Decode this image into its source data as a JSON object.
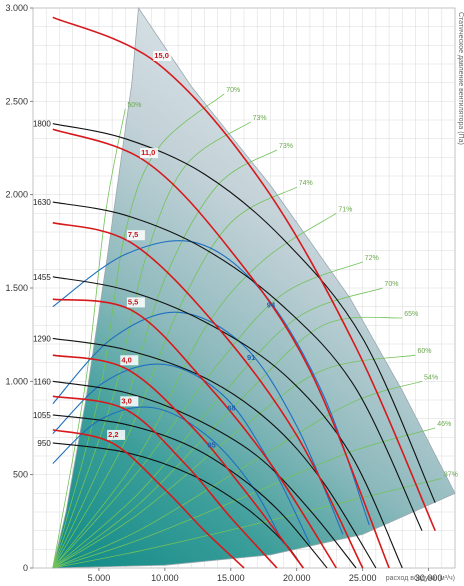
{
  "chart_data": {
    "type": "line",
    "xlabel": "расход воздуха (м³/ч)",
    "ylabel": "Статическое давление вентилятора (Па)",
    "xlim": [
      0,
      32000
    ],
    "ylim": [
      0,
      3000
    ],
    "x_ticks": [
      {
        "value": 5000,
        "label": "5.000"
      },
      {
        "value": 10000,
        "label": "10.000"
      },
      {
        "value": 15000,
        "label": "15.000"
      },
      {
        "value": 20000,
        "label": "20.000"
      },
      {
        "value": 25000,
        "label": "25.000"
      },
      {
        "value": 30000,
        "label": "30.000"
      }
    ],
    "y_ticks": [
      {
        "value": 0,
        "label": "0"
      },
      {
        "value": 500,
        "label": "500"
      },
      {
        "value": 1000,
        "label": "1.000"
      },
      {
        "value": 1500,
        "label": "1.500"
      },
      {
        "value": 2000,
        "label": "2.000"
      },
      {
        "value": 2500,
        "label": "2.500"
      },
      {
        "value": 3000,
        "label": "3.000"
      }
    ],
    "grid": true,
    "operating_region": {
      "left_boundary": [
        [
          1500,
          0
        ],
        [
          2500,
          300
        ],
        [
          4000,
          900
        ],
        [
          5700,
          1700
        ],
        [
          7500,
          2600
        ],
        [
          8000,
          3000
        ]
      ],
      "right_boundary": [
        [
          8000,
          3000
        ],
        [
          12000,
          2580
        ],
        [
          18000,
          2050
        ],
        [
          24000,
          1450
        ],
        [
          28000,
          950
        ],
        [
          32000,
          400
        ]
      ],
      "bottom_boundary": [
        [
          32000,
          400
        ],
        [
          25000,
          180
        ],
        [
          18000,
          70
        ],
        [
          10000,
          15
        ],
        [
          1500,
          0
        ]
      ]
    },
    "speed_curves": [
      {
        "label": "950",
        "points": [
          [
            1500,
            670
          ],
          [
            7000,
            620
          ],
          [
            12000,
            500
          ],
          [
            16000,
            330
          ],
          [
            19000,
            140
          ],
          [
            20500,
            0
          ]
        ]
      },
      {
        "label": "1055",
        "points": [
          [
            1500,
            820
          ],
          [
            7000,
            770
          ],
          [
            12000,
            650
          ],
          [
            16000,
            470
          ],
          [
            19000,
            280
          ],
          [
            22300,
            0
          ]
        ]
      },
      {
        "label": "1160",
        "points": [
          [
            1500,
            1000
          ],
          [
            7000,
            940
          ],
          [
            12000,
            810
          ],
          [
            17000,
            600
          ],
          [
            21000,
            310
          ],
          [
            24500,
            0
          ]
        ]
      },
      {
        "label": "1290",
        "points": [
          [
            1500,
            1230
          ],
          [
            7000,
            1170
          ],
          [
            13000,
            1020
          ],
          [
            18000,
            780
          ],
          [
            22000,
            460
          ],
          [
            26000,
            0
          ]
        ]
      },
      {
        "label": "1455",
        "points": [
          [
            1500,
            1560
          ],
          [
            7000,
            1490
          ],
          [
            13000,
            1320
          ],
          [
            19000,
            1040
          ],
          [
            24000,
            620
          ],
          [
            28000,
            0
          ]
        ]
      },
      {
        "label": "1630",
        "points": [
          [
            1500,
            1960
          ],
          [
            7000,
            1890
          ],
          [
            13000,
            1710
          ],
          [
            19000,
            1400
          ],
          [
            24500,
            960
          ],
          [
            29500,
            200
          ]
        ]
      },
      {
        "label": "1800",
        "points": [
          [
            1500,
            2380
          ],
          [
            7000,
            2300
          ],
          [
            13000,
            2110
          ],
          [
            19000,
            1760
          ],
          [
            25000,
            1230
          ],
          [
            30500,
            350
          ]
        ]
      }
    ],
    "power_curves": [
      {
        "label": "2,2",
        "points": [
          [
            1500,
            740
          ],
          [
            6000,
            670
          ],
          [
            10000,
            420
          ],
          [
            13000,
            200
          ],
          [
            16000,
            0
          ]
        ]
      },
      {
        "label": "3,0",
        "points": [
          [
            1500,
            920
          ],
          [
            7000,
            850
          ],
          [
            11500,
            560
          ],
          [
            15000,
            270
          ],
          [
            18500,
            0
          ]
        ]
      },
      {
        "label": "4,0",
        "points": [
          [
            1500,
            1140
          ],
          [
            7000,
            1070
          ],
          [
            12000,
            760
          ],
          [
            16000,
            420
          ],
          [
            20500,
            0
          ]
        ]
      },
      {
        "label": "5,5",
        "points": [
          [
            1500,
            1440
          ],
          [
            7500,
            1380
          ],
          [
            13000,
            1000
          ],
          [
            18000,
            560
          ],
          [
            23000,
            0
          ]
        ]
      },
      {
        "label": "7,5",
        "points": [
          [
            1500,
            1850
          ],
          [
            7500,
            1740
          ],
          [
            14000,
            1290
          ],
          [
            20000,
            710
          ],
          [
            25000,
            0
          ]
        ]
      },
      {
        "label": "11,0",
        "points": [
          [
            1500,
            2350
          ],
          [
            8500,
            2180
          ],
          [
            15000,
            1700
          ],
          [
            21000,
            1060
          ],
          [
            27000,
            0
          ]
        ]
      },
      {
        "label": "15,0",
        "points": [
          [
            1500,
            2950
          ],
          [
            9500,
            2700
          ],
          [
            17500,
            2050
          ],
          [
            24500,
            1180
          ],
          [
            30500,
            200
          ]
        ]
      }
    ],
    "efficiency_curves": [
      {
        "label": "85",
        "points": [
          [
            1500,
            560
          ],
          [
            5000,
            790
          ],
          [
            9000,
            860
          ],
          [
            13000,
            720
          ],
          [
            16500,
            450
          ],
          [
            19000,
            130
          ]
        ]
      },
      {
        "label": "88",
        "points": [
          [
            1500,
            720
          ],
          [
            5500,
            1000
          ],
          [
            10000,
            1090
          ],
          [
            14500,
            920
          ],
          [
            18000,
            560
          ],
          [
            21000,
            130
          ]
        ]
      },
      {
        "label": "91",
        "points": [
          [
            1500,
            880
          ],
          [
            6000,
            1230
          ],
          [
            11000,
            1370
          ],
          [
            16000,
            1190
          ],
          [
            20000,
            760
          ],
          [
            23500,
            180
          ]
        ]
      },
      {
        "label": "94",
        "points": [
          [
            1500,
            1400
          ],
          [
            7000,
            1680
          ],
          [
            12500,
            1740
          ],
          [
            17500,
            1470
          ],
          [
            22000,
            930
          ],
          [
            25500,
            230
          ]
        ]
      }
    ],
    "system_lines": [
      {
        "label": "37%",
        "points": [
          [
            1500,
            0
          ],
          [
            8000,
            90
          ],
          [
            16000,
            220
          ],
          [
            24000,
            360
          ],
          [
            31000,
            480
          ]
        ]
      },
      {
        "label": "46%",
        "points": [
          [
            1500,
            0
          ],
          [
            8000,
            150
          ],
          [
            16000,
            380
          ],
          [
            24000,
            620
          ],
          [
            30500,
            750
          ]
        ]
      },
      {
        "label": "54%",
        "points": [
          [
            1500,
            0
          ],
          [
            8000,
            200
          ],
          [
            16000,
            540
          ],
          [
            24000,
            880
          ],
          [
            29500,
            1000
          ]
        ]
      },
      {
        "label": "60%",
        "points": [
          [
            1500,
            0
          ],
          [
            8000,
            290
          ],
          [
            16000,
            760
          ],
          [
            22000,
            1060
          ],
          [
            29000,
            1140
          ]
        ]
      },
      {
        "label": "65%",
        "points": [
          [
            1500,
            0
          ],
          [
            8000,
            340
          ],
          [
            16000,
            920
          ],
          [
            22000,
            1300
          ],
          [
            28000,
            1340
          ]
        ]
      },
      {
        "label": "70%",
        "points": [
          [
            1500,
            0
          ],
          [
            8000,
            400
          ],
          [
            14000,
            900
          ],
          [
            20000,
            1340
          ],
          [
            26500,
            1500
          ]
        ]
      },
      {
        "label": "72%",
        "points": [
          [
            1500,
            0
          ],
          [
            8000,
            520
          ],
          [
            14000,
            1090
          ],
          [
            19000,
            1470
          ],
          [
            25000,
            1640
          ]
        ]
      },
      {
        "label": "71%",
        "points": [
          [
            1500,
            0
          ],
          [
            8000,
            600
          ],
          [
            13000,
            1280
          ],
          [
            17500,
            1650
          ],
          [
            23000,
            1900
          ]
        ]
      },
      {
        "label": "74%",
        "points": [
          [
            1500,
            0
          ],
          [
            7000,
            680
          ],
          [
            11000,
            1380
          ],
          [
            15000,
            1850
          ],
          [
            20000,
            2040
          ]
        ]
      },
      {
        "label": "73%",
        "points": [
          [
            1500,
            0
          ],
          [
            6500,
            780
          ],
          [
            10000,
            1550
          ],
          [
            14000,
            2050
          ],
          [
            18500,
            2240
          ]
        ]
      },
      {
        "label": "73%",
        "points": [
          [
            1500,
            0
          ],
          [
            6000,
            900
          ],
          [
            8500,
            1650
          ],
          [
            11500,
            2150
          ],
          [
            16500,
            2390
          ]
        ]
      },
      {
        "label": "70%",
        "points": [
          [
            1500,
            0
          ],
          [
            5000,
            920
          ],
          [
            7000,
            1800
          ],
          [
            9500,
            2250
          ],
          [
            14500,
            2540
          ]
        ]
      },
      {
        "label": "50%",
        "points": [
          [
            1500,
            0
          ],
          [
            4000,
            1000
          ],
          [
            5500,
            1900
          ],
          [
            7000,
            2460
          ]
        ]
      }
    ],
    "series_colors": {
      "speed": "#111111",
      "power": "#d7191c",
      "efficiency": "#1f6fc0",
      "system": "#73c25a"
    }
  }
}
